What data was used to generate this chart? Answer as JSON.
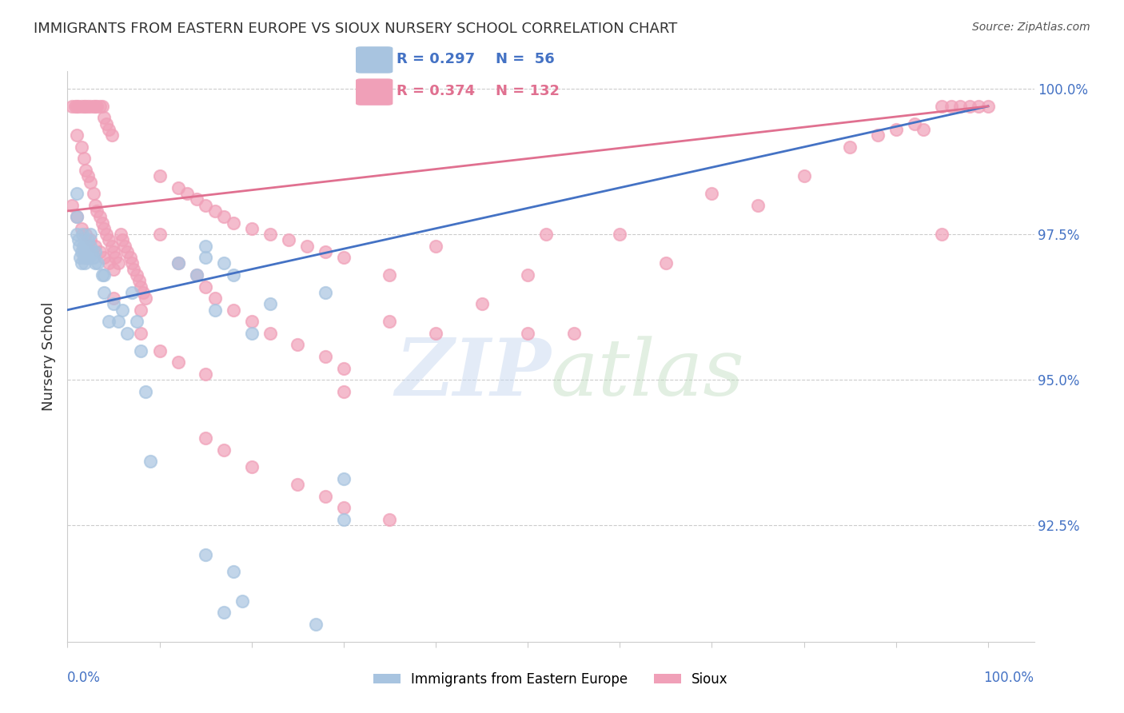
{
  "title": "IMMIGRANTS FROM EASTERN EUROPE VS SIOUX NURSERY SCHOOL CORRELATION CHART",
  "source": "Source: ZipAtlas.com",
  "ylabel": "Nursery School",
  "y_tick_labels": [
    "100.0%",
    "97.5%",
    "95.0%",
    "92.5%"
  ],
  "y_tick_values": [
    1.0,
    0.975,
    0.95,
    0.925
  ],
  "legend_blue_r": "R = 0.297",
  "legend_blue_n": "N =  56",
  "legend_pink_r": "R = 0.374",
  "legend_pink_n": "N = 132",
  "blue_color": "#a8c4e0",
  "pink_color": "#f0a0b8",
  "blue_line_color": "#4472c4",
  "pink_line_color": "#e07090",
  "tick_label_color": "#4472c4",
  "title_color": "#333333",
  "blue_scatter": [
    [
      0.01,
      0.982
    ],
    [
      0.01,
      0.978
    ],
    [
      0.01,
      0.975
    ],
    [
      0.012,
      0.974
    ],
    [
      0.013,
      0.973
    ],
    [
      0.014,
      0.971
    ],
    [
      0.015,
      0.972
    ],
    [
      0.015,
      0.97
    ],
    [
      0.016,
      0.975
    ],
    [
      0.017,
      0.973
    ],
    [
      0.018,
      0.972
    ],
    [
      0.018,
      0.971
    ],
    [
      0.019,
      0.97
    ],
    [
      0.02,
      0.973
    ],
    [
      0.02,
      0.971
    ],
    [
      0.022,
      0.974
    ],
    [
      0.022,
      0.972
    ],
    [
      0.023,
      0.971
    ],
    [
      0.025,
      0.975
    ],
    [
      0.025,
      0.973
    ],
    [
      0.027,
      0.972
    ],
    [
      0.028,
      0.971
    ],
    [
      0.03,
      0.972
    ],
    [
      0.03,
      0.97
    ],
    [
      0.033,
      0.97
    ],
    [
      0.038,
      0.968
    ],
    [
      0.04,
      0.965
    ],
    [
      0.04,
      0.968
    ],
    [
      0.045,
      0.96
    ],
    [
      0.05,
      0.963
    ],
    [
      0.055,
      0.96
    ],
    [
      0.06,
      0.962
    ],
    [
      0.065,
      0.958
    ],
    [
      0.07,
      0.965
    ],
    [
      0.075,
      0.96
    ],
    [
      0.08,
      0.955
    ],
    [
      0.085,
      0.948
    ],
    [
      0.09,
      0.936
    ],
    [
      0.12,
      0.97
    ],
    [
      0.14,
      0.968
    ],
    [
      0.15,
      0.973
    ],
    [
      0.15,
      0.971
    ],
    [
      0.16,
      0.962
    ],
    [
      0.17,
      0.97
    ],
    [
      0.18,
      0.968
    ],
    [
      0.2,
      0.958
    ],
    [
      0.22,
      0.963
    ],
    [
      0.28,
      0.965
    ],
    [
      0.3,
      0.933
    ],
    [
      0.15,
      0.92
    ],
    [
      0.18,
      0.917
    ],
    [
      0.17,
      0.91
    ],
    [
      0.19,
      0.912
    ],
    [
      0.27,
      0.908
    ],
    [
      0.3,
      0.926
    ]
  ],
  "pink_scatter": [
    [
      0.005,
      0.997
    ],
    [
      0.008,
      0.997
    ],
    [
      0.01,
      0.997
    ],
    [
      0.012,
      0.997
    ],
    [
      0.015,
      0.997
    ],
    [
      0.018,
      0.997
    ],
    [
      0.02,
      0.997
    ],
    [
      0.022,
      0.997
    ],
    [
      0.025,
      0.997
    ],
    [
      0.028,
      0.997
    ],
    [
      0.03,
      0.997
    ],
    [
      0.032,
      0.997
    ],
    [
      0.035,
      0.997
    ],
    [
      0.038,
      0.997
    ],
    [
      0.04,
      0.995
    ],
    [
      0.042,
      0.994
    ],
    [
      0.045,
      0.993
    ],
    [
      0.048,
      0.992
    ],
    [
      0.01,
      0.992
    ],
    [
      0.015,
      0.99
    ],
    [
      0.018,
      0.988
    ],
    [
      0.02,
      0.986
    ],
    [
      0.022,
      0.985
    ],
    [
      0.025,
      0.984
    ],
    [
      0.028,
      0.982
    ],
    [
      0.03,
      0.98
    ],
    [
      0.032,
      0.979
    ],
    [
      0.035,
      0.978
    ],
    [
      0.038,
      0.977
    ],
    [
      0.04,
      0.976
    ],
    [
      0.042,
      0.975
    ],
    [
      0.045,
      0.974
    ],
    [
      0.048,
      0.973
    ],
    [
      0.05,
      0.972
    ],
    [
      0.052,
      0.971
    ],
    [
      0.055,
      0.97
    ],
    [
      0.058,
      0.975
    ],
    [
      0.06,
      0.974
    ],
    [
      0.062,
      0.973
    ],
    [
      0.065,
      0.972
    ],
    [
      0.068,
      0.971
    ],
    [
      0.07,
      0.97
    ],
    [
      0.072,
      0.969
    ],
    [
      0.075,
      0.968
    ],
    [
      0.078,
      0.967
    ],
    [
      0.08,
      0.966
    ],
    [
      0.082,
      0.965
    ],
    [
      0.085,
      0.964
    ],
    [
      0.005,
      0.98
    ],
    [
      0.01,
      0.978
    ],
    [
      0.015,
      0.976
    ],
    [
      0.02,
      0.975
    ],
    [
      0.025,
      0.974
    ],
    [
      0.03,
      0.973
    ],
    [
      0.035,
      0.972
    ],
    [
      0.04,
      0.971
    ],
    [
      0.045,
      0.97
    ],
    [
      0.05,
      0.969
    ],
    [
      0.1,
      0.985
    ],
    [
      0.12,
      0.983
    ],
    [
      0.13,
      0.982
    ],
    [
      0.14,
      0.981
    ],
    [
      0.15,
      0.98
    ],
    [
      0.16,
      0.979
    ],
    [
      0.17,
      0.978
    ],
    [
      0.18,
      0.977
    ],
    [
      0.2,
      0.976
    ],
    [
      0.22,
      0.975
    ],
    [
      0.24,
      0.974
    ],
    [
      0.26,
      0.973
    ],
    [
      0.28,
      0.972
    ],
    [
      0.3,
      0.971
    ],
    [
      0.5,
      0.968
    ],
    [
      0.52,
      0.975
    ],
    [
      0.6,
      0.975
    ],
    [
      0.65,
      0.97
    ],
    [
      0.7,
      0.982
    ],
    [
      0.75,
      0.98
    ],
    [
      0.8,
      0.985
    ],
    [
      0.85,
      0.99
    ],
    [
      0.88,
      0.992
    ],
    [
      0.9,
      0.993
    ],
    [
      0.92,
      0.994
    ],
    [
      0.93,
      0.993
    ],
    [
      0.95,
      0.997
    ],
    [
      0.96,
      0.997
    ],
    [
      0.97,
      0.997
    ],
    [
      0.98,
      0.997
    ],
    [
      0.99,
      0.997
    ],
    [
      1.0,
      0.997
    ],
    [
      0.05,
      0.964
    ],
    [
      0.08,
      0.962
    ],
    [
      0.1,
      0.975
    ],
    [
      0.12,
      0.97
    ],
    [
      0.14,
      0.968
    ],
    [
      0.15,
      0.966
    ],
    [
      0.16,
      0.964
    ],
    [
      0.18,
      0.962
    ],
    [
      0.2,
      0.96
    ],
    [
      0.22,
      0.958
    ],
    [
      0.25,
      0.956
    ],
    [
      0.28,
      0.954
    ],
    [
      0.3,
      0.952
    ],
    [
      0.35,
      0.968
    ],
    [
      0.4,
      0.973
    ],
    [
      0.45,
      0.963
    ],
    [
      0.5,
      0.958
    ],
    [
      0.55,
      0.958
    ],
    [
      0.95,
      0.975
    ],
    [
      0.08,
      0.958
    ],
    [
      0.1,
      0.955
    ],
    [
      0.12,
      0.953
    ],
    [
      0.15,
      0.951
    ],
    [
      0.3,
      0.948
    ],
    [
      0.35,
      0.96
    ],
    [
      0.4,
      0.958
    ],
    [
      0.15,
      0.94
    ],
    [
      0.17,
      0.938
    ],
    [
      0.2,
      0.935
    ],
    [
      0.25,
      0.932
    ],
    [
      0.28,
      0.93
    ],
    [
      0.3,
      0.928
    ],
    [
      0.35,
      0.926
    ]
  ],
  "blue_line_x": [
    0.0,
    1.0
  ],
  "blue_line_y_start": 0.962,
  "blue_line_y_end": 0.997,
  "pink_line_x": [
    0.0,
    1.0
  ],
  "pink_line_y_start": 0.979,
  "pink_line_y_end": 0.997,
  "xlim": [
    0.0,
    1.05
  ],
  "ylim": [
    0.905,
    1.003
  ],
  "figsize": [
    14.06,
    8.92
  ]
}
